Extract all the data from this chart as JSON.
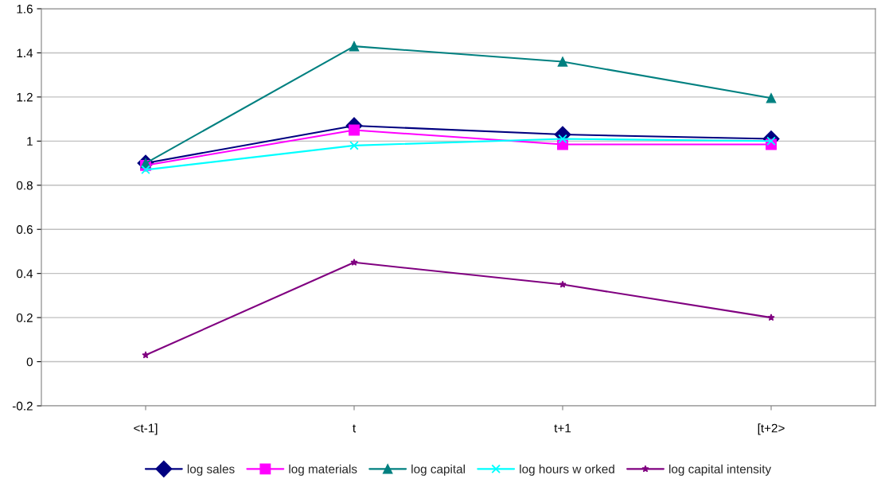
{
  "chart_data": {
    "type": "line",
    "categories": [
      "<t-1]",
      "t",
      "t+1",
      "[t+2>"
    ],
    "series": [
      {
        "name": "log sales",
        "color": "#000080",
        "marker": "diamond",
        "values": [
          0.9,
          1.07,
          1.03,
          1.01
        ]
      },
      {
        "name": "log materials",
        "color": "#ff00ff",
        "marker": "square",
        "values": [
          0.89,
          1.05,
          0.985,
          0.985
        ]
      },
      {
        "name": "log capital",
        "color": "#008080",
        "marker": "triangle",
        "values": [
          0.9,
          1.43,
          1.36,
          1.195
        ]
      },
      {
        "name": "log hours w orked",
        "color": "#00ffff",
        "marker": "cross",
        "values": [
          0.87,
          0.98,
          1.01,
          1.0
        ]
      },
      {
        "name": "log capital intensity",
        "color": "#800080",
        "marker": "star",
        "values": [
          0.03,
          0.45,
          0.35,
          0.2
        ]
      }
    ],
    "ylim": [
      -0.2,
      1.6
    ],
    "yticks": [
      -0.2,
      0,
      0.2,
      0.4,
      0.6,
      0.8,
      1,
      1.2,
      1.4,
      1.6
    ],
    "grid": "y",
    "legend": "bottom",
    "line_style": "solid"
  }
}
